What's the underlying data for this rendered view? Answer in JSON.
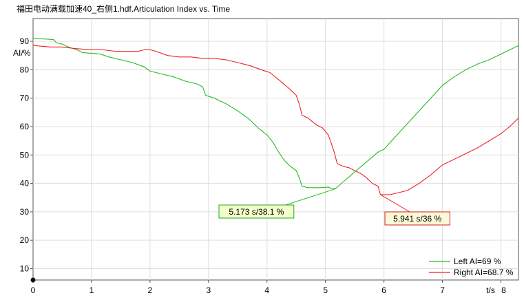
{
  "chart_data": {
    "type": "line",
    "title": "福田电动满载加速40_右侧1.hdf.Articulation Index vs. Time",
    "ylabel": "AI/%",
    "xlabel_unit": "t/s",
    "xlim": [
      0,
      8.3
    ],
    "ylim": [
      6,
      98
    ],
    "x_ticks": [
      0,
      1,
      2,
      3,
      4,
      5,
      6,
      7,
      8
    ],
    "y_ticks": [
      10,
      20,
      30,
      40,
      50,
      60,
      70,
      80,
      90
    ],
    "grid": true,
    "legend_position": "bottom-right",
    "series": [
      {
        "name": "Left AI=69 %",
        "color": "#22bb22",
        "points": [
          [
            0.0,
            91
          ],
          [
            0.2,
            90.8
          ],
          [
            0.35,
            90.6
          ],
          [
            0.4,
            89.5
          ],
          [
            0.5,
            89
          ],
          [
            0.6,
            88
          ],
          [
            0.75,
            87
          ],
          [
            0.85,
            86
          ],
          [
            1.0,
            85.8
          ],
          [
            1.15,
            85.5
          ],
          [
            1.3,
            84.5
          ],
          [
            1.5,
            83.5
          ],
          [
            1.7,
            82.5
          ],
          [
            1.9,
            81
          ],
          [
            2.0,
            79.5
          ],
          [
            2.2,
            78.5
          ],
          [
            2.4,
            77.5
          ],
          [
            2.6,
            76
          ],
          [
            2.8,
            75
          ],
          [
            2.9,
            74
          ],
          [
            2.95,
            71
          ],
          [
            3.1,
            70
          ],
          [
            3.3,
            68
          ],
          [
            3.5,
            65.5
          ],
          [
            3.7,
            62.5
          ],
          [
            3.85,
            59.5
          ],
          [
            4.0,
            57
          ],
          [
            4.1,
            54.5
          ],
          [
            4.2,
            51
          ],
          [
            4.3,
            48
          ],
          [
            4.4,
            46
          ],
          [
            4.5,
            44.5
          ],
          [
            4.55,
            42
          ],
          [
            4.6,
            39
          ],
          [
            4.7,
            38.5
          ],
          [
            4.9,
            38.5
          ],
          [
            5.05,
            38.7
          ],
          [
            5.1,
            38.2
          ],
          [
            5.17,
            38.1
          ],
          [
            5.3,
            40.5
          ],
          [
            5.5,
            44
          ],
          [
            5.7,
            47.5
          ],
          [
            5.9,
            51
          ],
          [
            6.0,
            52
          ],
          [
            6.2,
            56.5
          ],
          [
            6.4,
            61
          ],
          [
            6.6,
            65.5
          ],
          [
            6.8,
            70
          ],
          [
            7.0,
            74.5
          ],
          [
            7.2,
            77.5
          ],
          [
            7.4,
            80
          ],
          [
            7.6,
            82
          ],
          [
            7.8,
            83.5
          ],
          [
            8.0,
            85.5
          ],
          [
            8.15,
            87
          ],
          [
            8.3,
            88.5
          ]
        ]
      },
      {
        "name": "Right AI=68.7 %",
        "color": "#ee2222",
        "points": [
          [
            0.0,
            88.5
          ],
          [
            0.3,
            88
          ],
          [
            0.5,
            88
          ],
          [
            0.7,
            87.5
          ],
          [
            1.0,
            87
          ],
          [
            1.2,
            87
          ],
          [
            1.4,
            86.5
          ],
          [
            1.6,
            86.5
          ],
          [
            1.8,
            86.5
          ],
          [
            1.9,
            87
          ],
          [
            2.0,
            87
          ],
          [
            2.1,
            86.5
          ],
          [
            2.3,
            85
          ],
          [
            2.5,
            84.5
          ],
          [
            2.7,
            84.5
          ],
          [
            2.9,
            84
          ],
          [
            3.1,
            84
          ],
          [
            3.3,
            83.5
          ],
          [
            3.5,
            82.5
          ],
          [
            3.7,
            81.5
          ],
          [
            3.9,
            80
          ],
          [
            4.05,
            79
          ],
          [
            4.2,
            76.5
          ],
          [
            4.4,
            73
          ],
          [
            4.5,
            71
          ],
          [
            4.55,
            68
          ],
          [
            4.6,
            64
          ],
          [
            4.7,
            63
          ],
          [
            4.85,
            60.5
          ],
          [
            4.95,
            59.5
          ],
          [
            5.05,
            57
          ],
          [
            5.1,
            54
          ],
          [
            5.15,
            51
          ],
          [
            5.2,
            47
          ],
          [
            5.3,
            46
          ],
          [
            5.4,
            45.5
          ],
          [
            5.5,
            44.5
          ],
          [
            5.6,
            43.5
          ],
          [
            5.7,
            42
          ],
          [
            5.8,
            40
          ],
          [
            5.9,
            39
          ],
          [
            5.94,
            36
          ],
          [
            6.0,
            36
          ],
          [
            6.1,
            36
          ],
          [
            6.3,
            37
          ],
          [
            6.4,
            37.5
          ],
          [
            6.6,
            40
          ],
          [
            6.8,
            43
          ],
          [
            7.0,
            46.5
          ],
          [
            7.2,
            48.5
          ],
          [
            7.4,
            50.5
          ],
          [
            7.6,
            52.5
          ],
          [
            7.8,
            55
          ],
          [
            8.0,
            57.5
          ],
          [
            8.15,
            60
          ],
          [
            8.3,
            63
          ]
        ]
      }
    ],
    "annotations": [
      {
        "label": "5.173 s/38.1 %",
        "x": 5.173,
        "y": 38.1,
        "line_color": "#22bb22",
        "box_color": "#f4ffcc",
        "border_color": "#22aa22"
      },
      {
        "label": "5.941 s/36 %",
        "x": 5.941,
        "y": 36,
        "line_color": "#ee2222",
        "box_color": "#fff8d8",
        "border_color": "#cc2222"
      }
    ]
  }
}
